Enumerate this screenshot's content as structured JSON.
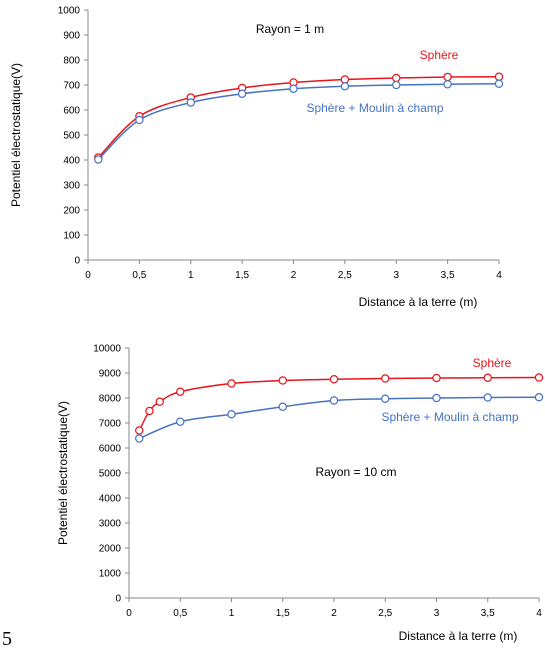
{
  "page_number": "5",
  "colors": {
    "sphere": "#e8141b",
    "sphere_mill": "#4472c4",
    "axis": "#888888",
    "marker_fill": "#ffffff"
  },
  "chart_data": [
    {
      "type": "line",
      "xlabel": "Distance à la terre (m)",
      "ylabel": "Potentiel électrostatique(V)",
      "xlim": [
        0,
        4
      ],
      "ylim": [
        0,
        1000
      ],
      "xticks": [
        0,
        0.5,
        1,
        1.5,
        2,
        2.5,
        3,
        3.5,
        4
      ],
      "xtick_labels": [
        "0",
        "0,5",
        "1",
        "1,5",
        "2",
        "2,5",
        "3",
        "3,5",
        "4"
      ],
      "yticks": [
        0,
        100,
        200,
        300,
        400,
        500,
        600,
        700,
        800,
        900,
        1000
      ],
      "ytick_labels": [
        "0",
        "100",
        "200",
        "300",
        "400",
        "500",
        "600",
        "700",
        "800",
        "900",
        "1000"
      ],
      "annotation": "Rayon = 1 m",
      "series": [
        {
          "name": "Sphère",
          "color": "#e8141b",
          "x": [
            0.1,
            0.5,
            1,
            1.5,
            2,
            2.5,
            3,
            3.5,
            4
          ],
          "y": [
            410,
            575,
            650,
            688,
            710,
            722,
            728,
            732,
            733
          ]
        },
        {
          "name": "Sphère + Moulin à champ",
          "color": "#4472c4",
          "x": [
            0.1,
            0.5,
            1,
            1.5,
            2,
            2.5,
            3,
            3.5,
            4
          ],
          "y": [
            402,
            560,
            630,
            665,
            685,
            695,
            700,
            703,
            705
          ]
        }
      ]
    },
    {
      "type": "line",
      "xlabel": "Distance à la terre (m)",
      "ylabel": "Potentiel électrostatique(V)",
      "xlim": [
        0,
        4
      ],
      "ylim": [
        0,
        10000
      ],
      "xticks": [
        0,
        0.5,
        1,
        1.5,
        2,
        2.5,
        3,
        3.5,
        4
      ],
      "xtick_labels": [
        "0",
        "0,5",
        "1",
        "1,5",
        "2",
        "2,5",
        "3",
        "3,5",
        "4"
      ],
      "yticks": [
        0,
        1000,
        2000,
        3000,
        4000,
        5000,
        6000,
        7000,
        8000,
        9000,
        10000
      ],
      "ytick_labels": [
        "0",
        "1000",
        "2000",
        "3000",
        "4000",
        "5000",
        "6000",
        "7000",
        "8000",
        "9000",
        "10000"
      ],
      "annotation": "Rayon = 10 cm",
      "series": [
        {
          "name": "Sphère",
          "color": "#e8141b",
          "x": [
            0.1,
            0.2,
            0.3,
            0.5,
            1,
            1.5,
            2,
            2.5,
            3,
            3.5,
            4
          ],
          "y": [
            6700,
            7480,
            7850,
            8250,
            8580,
            8700,
            8750,
            8780,
            8800,
            8810,
            8820
          ]
        },
        {
          "name": "Sphère + Moulin à champ",
          "color": "#4472c4",
          "x": [
            0.1,
            0.5,
            1,
            1.5,
            2,
            2.5,
            3,
            3.5,
            4
          ],
          "y": [
            6380,
            7050,
            7350,
            7650,
            7900,
            7970,
            8000,
            8020,
            8030
          ]
        }
      ]
    }
  ]
}
